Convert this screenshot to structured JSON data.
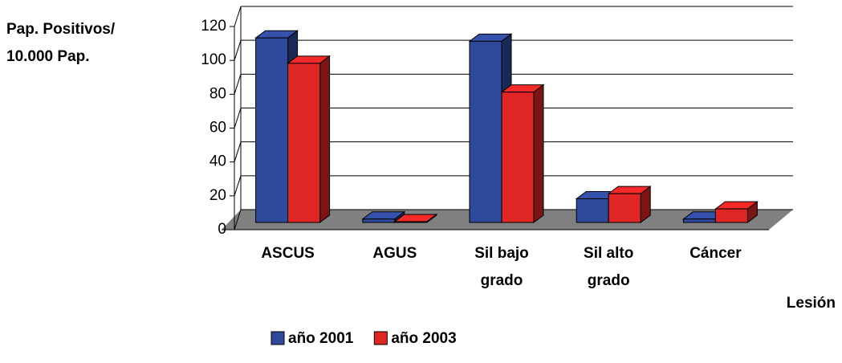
{
  "chart_data": {
    "type": "bar3d",
    "y_label": [
      "Pap. Positivos/",
      "10.000 Pap."
    ],
    "x_label": "Lesión",
    "categories": [
      "ASCUS",
      "AGUS",
      "Sil bajo grado",
      "Sil alto grado",
      "Cáncer"
    ],
    "series": [
      {
        "name": "año 2001",
        "color": "#2f4a9c",
        "values": [
          109,
          2,
          107,
          14,
          2
        ]
      },
      {
        "name": "año 2003",
        "color": "#e02525",
        "values": [
          94,
          0.5,
          77,
          17,
          8
        ]
      }
    ],
    "ylim": [
      0,
      120
    ],
    "yticks": [
      0,
      20,
      40,
      60,
      80,
      100,
      120
    ],
    "grid": true,
    "legend": "bottom"
  }
}
